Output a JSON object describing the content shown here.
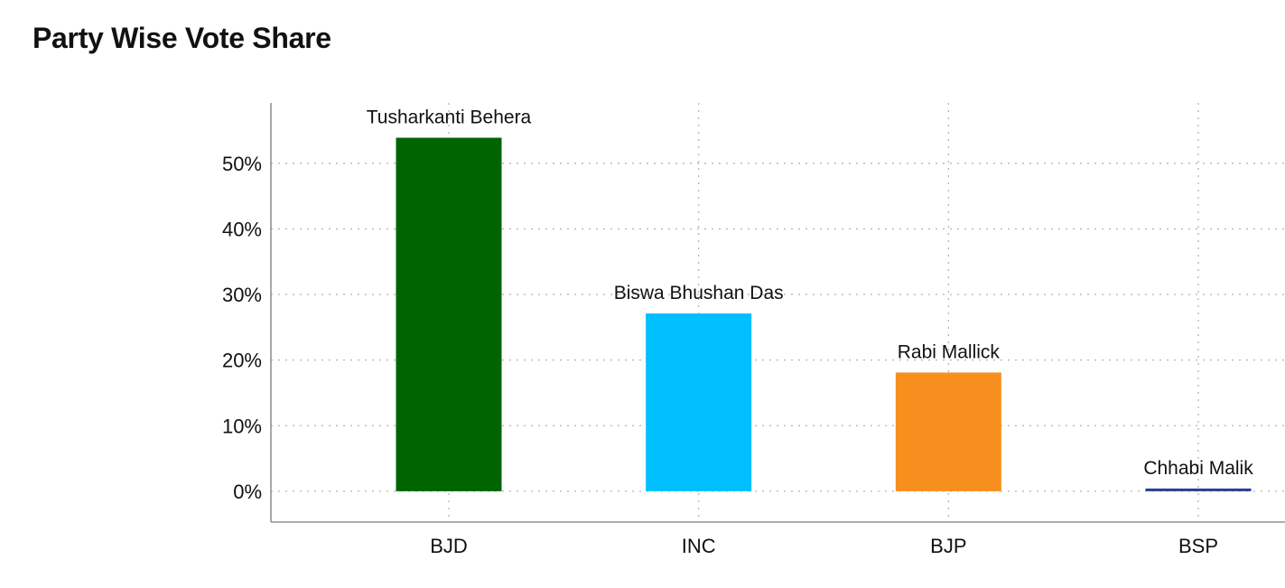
{
  "title": "Party Wise Vote Share",
  "chart_data": {
    "type": "bar",
    "title": "Party Wise Vote Share",
    "xlabel": "",
    "ylabel": "",
    "categories": [
      "BJD",
      "INC",
      "BJP",
      "BSP"
    ],
    "values": [
      53.9,
      27.1,
      18.1,
      0.4
    ],
    "data_labels": [
      "Tusharkanti Behera",
      "Biswa Bhushan Das",
      "Rabi Mallick",
      "Chhabi Malik"
    ],
    "colors": [
      "#006400",
      "#00bfff",
      "#f68f1e",
      "#223f93"
    ],
    "y_ticks": [
      0,
      10,
      20,
      30,
      40,
      50
    ],
    "y_tick_labels": [
      "0%",
      "10%",
      "20%",
      "30%",
      "40%",
      "50%"
    ],
    "ylim": [
      -4.7,
      59.2
    ],
    "grid": true,
    "grid_style": "dotted",
    "legend": "none"
  }
}
